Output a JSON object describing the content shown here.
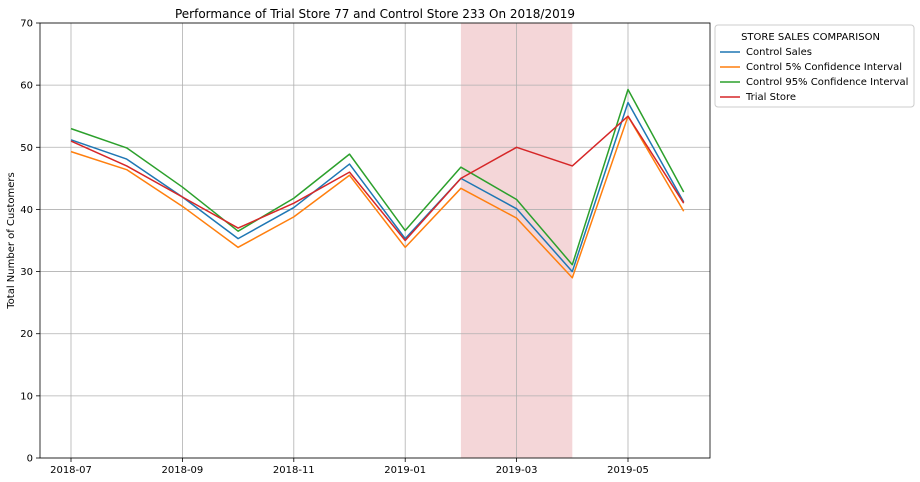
{
  "chart_data": {
    "type": "line",
    "title": "Performance of Trial Store 77 and Control Store 233 On 2018/2019",
    "xlabel": "",
    "ylabel": "Total Number of Customers",
    "ylim": [
      0,
      70
    ],
    "yticks": [
      0,
      10,
      20,
      30,
      40,
      50,
      60,
      70
    ],
    "x": [
      "2018-07",
      "2018-08",
      "2018-09",
      "2018-10",
      "2018-11",
      "2018-12",
      "2019-01",
      "2019-02",
      "2019-03",
      "2019-04",
      "2019-05",
      "2019-06"
    ],
    "xticks": [
      "2018-07",
      "2018-09",
      "2018-11",
      "2019-01",
      "2019-03",
      "2019-05"
    ],
    "grid": true,
    "highlight": {
      "from": "2019-02",
      "to": "2019-04",
      "color": "#f4d6d8"
    },
    "legend": {
      "title": "STORE SALES COMPARISON",
      "placement": "outside-top-right"
    },
    "series": [
      {
        "name": "Control Sales",
        "color": "#1f77b4",
        "values": [
          51.2,
          48.1,
          42.0,
          35.3,
          40.3,
          47.3,
          35.3,
          45.0,
          40.1,
          30.0,
          57.2,
          41.2
        ]
      },
      {
        "name": "Control 5% Confidence Interval",
        "color": "#ff7f0e",
        "values": [
          49.3,
          46.4,
          40.5,
          33.9,
          38.8,
          45.5,
          33.9,
          43.4,
          38.6,
          29.0,
          55.0,
          39.7
        ]
      },
      {
        "name": "Control 95% Confidence Interval",
        "color": "#2ca02c",
        "values": [
          53.0,
          49.9,
          43.6,
          36.5,
          41.8,
          48.9,
          36.6,
          46.8,
          41.6,
          31.1,
          59.3,
          42.8
        ]
      },
      {
        "name": "Trial Store",
        "color": "#d62728",
        "values": [
          51.0,
          47.0,
          42.0,
          37.0,
          41.0,
          46.0,
          35.0,
          45.0,
          50.0,
          47.0,
          55.0,
          41.0
        ]
      }
    ]
  }
}
